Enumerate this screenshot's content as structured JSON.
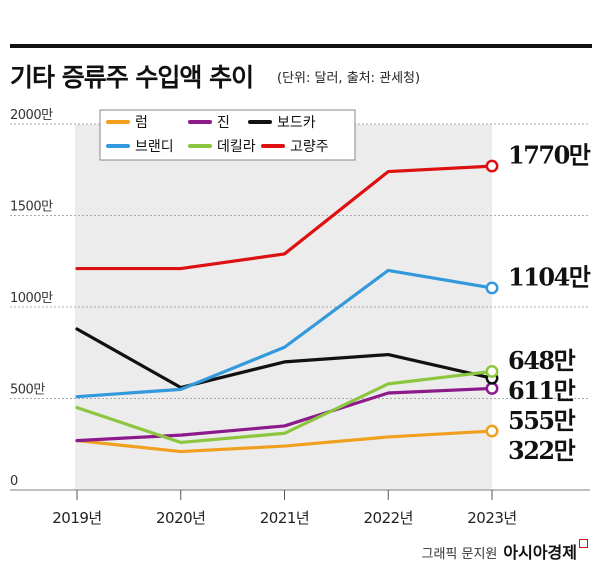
{
  "title": "기타 증류주 수입액 추이",
  "unit_note": "(단위: 달러, 출처: 관세청)",
  "credit": {
    "graphic": "그래픽 문지원",
    "brand": "아시아경제"
  },
  "chart_data": {
    "type": "line",
    "x": [
      "2019년",
      "2020년",
      "2021년",
      "2022년",
      "2023년"
    ],
    "ylim": [
      0,
      2000
    ],
    "ytick_values": [
      0,
      500,
      1000,
      1500,
      2000
    ],
    "ytick_labels": [
      "0",
      "500만",
      "1000만",
      "1500만",
      "2000만"
    ],
    "grid": true,
    "legend_position": "top-center",
    "series": [
      {
        "name": "럼",
        "color": "#f0a01e",
        "values": [
          270,
          210,
          240,
          290,
          322
        ],
        "end_label": "322만"
      },
      {
        "name": "진",
        "color": "#8b1a8b",
        "values": [
          270,
          300,
          350,
          530,
          555
        ],
        "end_label": "555만"
      },
      {
        "name": "보드카",
        "color": "#111111",
        "values": [
          880,
          560,
          700,
          740,
          611
        ],
        "end_label": "611만"
      },
      {
        "name": "브랜디",
        "color": "#3399dd",
        "values": [
          510,
          550,
          780,
          1200,
          1104
        ],
        "end_label": "1104만"
      },
      {
        "name": "데킬라",
        "color": "#8cc63f",
        "values": [
          450,
          260,
          310,
          580,
          648
        ],
        "end_label": "648만"
      },
      {
        "name": "고량주",
        "color": "#dd1111",
        "values": [
          1210,
          1210,
          1290,
          1740,
          1770
        ],
        "end_label": "1770만"
      }
    ]
  }
}
